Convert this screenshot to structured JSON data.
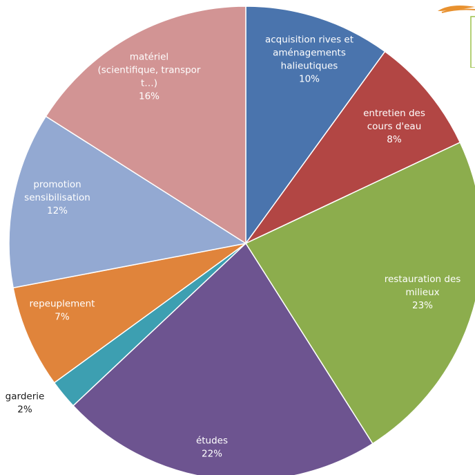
{
  "chart_data": {
    "type": "pie",
    "start_angle_deg": 0,
    "direction": "clockwise",
    "slices": [
      {
        "label_lines": [
          "acquisition rives et",
          "aménagements",
          "halieutiques"
        ],
        "value": 10,
        "display": "10%",
        "color": "#4a74ad"
      },
      {
        "label_lines": [
          "entretien des",
          "cours d'eau"
        ],
        "value": 8,
        "display": "8%",
        "color": "#b24644"
      },
      {
        "label_lines": [
          "restauration des",
          "milieux"
        ],
        "value": 23,
        "display": "23%",
        "color": "#8cad4d"
      },
      {
        "label_lines": [
          "études"
        ],
        "value": 22,
        "display": "22%",
        "color": "#6d5490"
      },
      {
        "label_lines": [
          "garderie"
        ],
        "value": 2,
        "display": "2%",
        "color": "#3d9fb1"
      },
      {
        "label_lines": [
          "repeuplement"
        ],
        "value": 7,
        "display": "7%",
        "color": "#e0843b"
      },
      {
        "label_lines": [
          "promotion",
          "sensibilisation"
        ],
        "value": 12,
        "display": "12%",
        "color": "#93a9d2"
      },
      {
        "label_lines": [
          "matériel",
          "(scientifique, transpor",
          "t…)"
        ],
        "value": 16,
        "display": "16%",
        "color": "#d29494"
      }
    ]
  },
  "logo_colors": {
    "swirl": "#e8912f",
    "box": "#9bc04a"
  }
}
